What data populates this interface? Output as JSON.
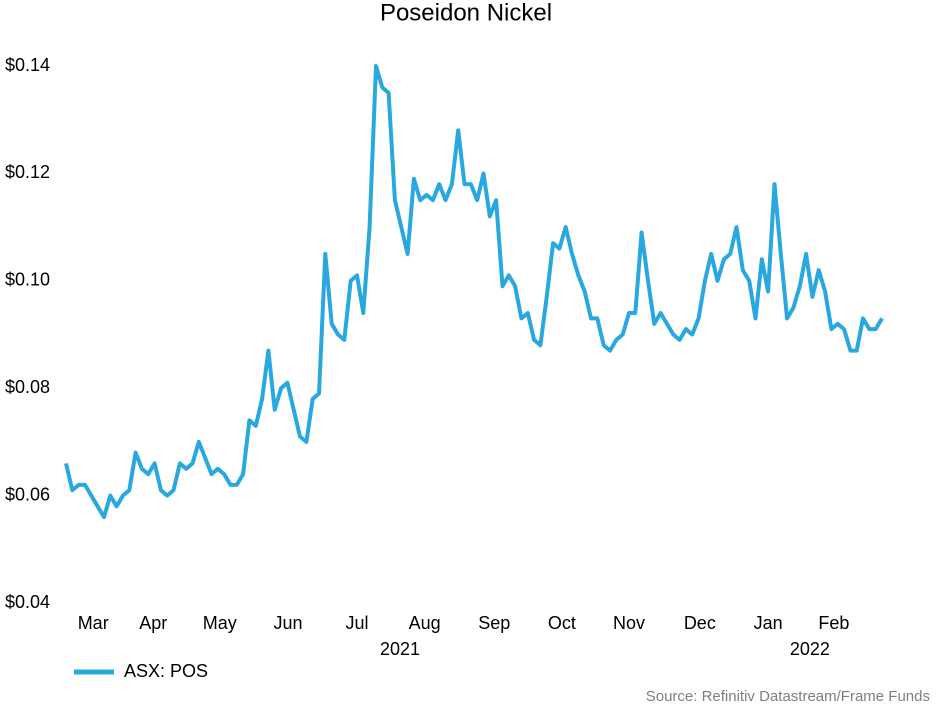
{
  "chart_data": {
    "type": "line",
    "title": "Poseidon Nickel",
    "series": [
      {
        "name": "ASX: POS",
        "color": "#29a8e0",
        "values": [
          0.066,
          0.061,
          0.062,
          0.062,
          0.06,
          0.058,
          0.056,
          0.06,
          0.058,
          0.06,
          0.061,
          0.068,
          0.065,
          0.064,
          0.066,
          0.061,
          0.06,
          0.061,
          0.066,
          0.065,
          0.066,
          0.07,
          0.067,
          0.064,
          0.065,
          0.064,
          0.062,
          0.062,
          0.064,
          0.074,
          0.073,
          0.078,
          0.087,
          0.076,
          0.08,
          0.081,
          0.076,
          0.071,
          0.07,
          0.078,
          0.079,
          0.105,
          0.092,
          0.09,
          0.089,
          0.1,
          0.101,
          0.094,
          0.11,
          0.14,
          0.136,
          0.135,
          0.115,
          0.11,
          0.105,
          0.119,
          0.115,
          0.116,
          0.115,
          0.118,
          0.115,
          0.118,
          0.128,
          0.118,
          0.118,
          0.115,
          0.12,
          0.112,
          0.115,
          0.099,
          0.101,
          0.099,
          0.093,
          0.094,
          0.089,
          0.088,
          0.097,
          0.107,
          0.106,
          0.11,
          0.105,
          0.101,
          0.098,
          0.093,
          0.093,
          0.088,
          0.087,
          0.089,
          0.09,
          0.094,
          0.094,
          0.109,
          0.1,
          0.092,
          0.094,
          0.092,
          0.09,
          0.089,
          0.091,
          0.09,
          0.093,
          0.1,
          0.105,
          0.1,
          0.104,
          0.105,
          0.11,
          0.102,
          0.1,
          0.093,
          0.104,
          0.098,
          0.118,
          0.105,
          0.093,
          0.095,
          0.099,
          0.105,
          0.097,
          0.102,
          0.098,
          0.091,
          0.092,
          0.091,
          0.087,
          0.087,
          0.093,
          0.091,
          0.091,
          0.093
        ]
      }
    ],
    "xlim": [
      0,
      129
    ],
    "xticks": [
      {
        "value": 4.3,
        "label": "Mar"
      },
      {
        "value": 13.8,
        "label": "Apr"
      },
      {
        "value": 24.3,
        "label": "May"
      },
      {
        "value": 35.1,
        "label": "Jun"
      },
      {
        "value": 46,
        "label": "Jul"
      },
      {
        "value": 56.7,
        "label": "Aug"
      },
      {
        "value": 67.7,
        "label": "Sep"
      },
      {
        "value": 78.4,
        "label": "Oct"
      },
      {
        "value": 89,
        "label": "Nov"
      },
      {
        "value": 100.2,
        "label": "Dec"
      },
      {
        "value": 111,
        "label": "Jan"
      },
      {
        "value": 121.4,
        "label": "Feb"
      }
    ],
    "year_labels": [
      {
        "value": 52.8,
        "label": "2021"
      },
      {
        "value": 117.6,
        "label": "2022"
      }
    ],
    "ylim": [
      0.04,
      0.14
    ],
    "yticks": [
      {
        "value": 0.04,
        "label": "$0.04"
      },
      {
        "value": 0.06,
        "label": "$0.06"
      },
      {
        "value": 0.08,
        "label": "$0.08"
      },
      {
        "value": 0.1,
        "label": "$0.10"
      },
      {
        "value": 0.12,
        "label": "$0.12"
      },
      {
        "value": 0.14,
        "label": "$0.14"
      }
    ],
    "grid": false,
    "legend": "bottom-left",
    "source": "Source: Refinitiv Datastream/Frame Funds"
  }
}
